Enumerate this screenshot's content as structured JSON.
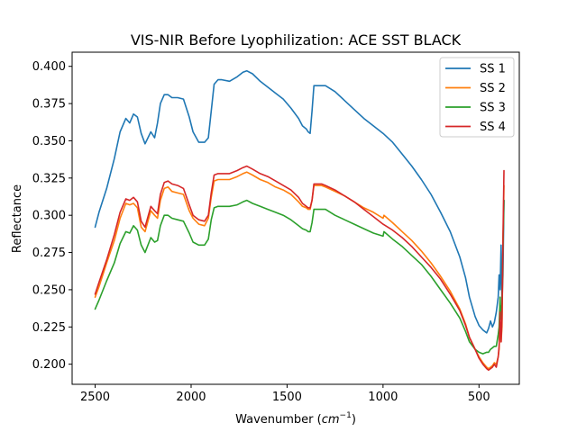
{
  "chart_data": {
    "type": "line",
    "title": "VIS-NIR Before Lyophilization: ACE SST BLACK",
    "xlabel_prefix": "Wavenumber (",
    "xlabel_math": "cm",
    "xlabel_sup": "−1",
    "xlabel_suffix": ")",
    "ylabel": "Reflectance",
    "xlim": [
      2620,
      290
    ],
    "ylim": [
      0.1865,
      0.4095
    ],
    "xticks": [
      2500,
      2000,
      1500,
      1000,
      500
    ],
    "yticks": [
      0.2,
      0.225,
      0.25,
      0.275,
      0.3,
      0.325,
      0.35,
      0.375,
      0.4
    ],
    "xtick_labels": [
      "2500",
      "2000",
      "1500",
      "1000",
      "500"
    ],
    "ytick_labels": [
      "0.200",
      "0.225",
      "0.250",
      "0.275",
      "0.300",
      "0.325",
      "0.350",
      "0.375",
      "0.400"
    ],
    "legend_position": "upper-right",
    "series": [
      {
        "name": "SS 1",
        "color": "#1f77b4",
        "x": [
          2500,
          2480,
          2440,
          2400,
          2370,
          2340,
          2320,
          2300,
          2280,
          2260,
          2240,
          2210,
          2190,
          2175,
          2160,
          2140,
          2120,
          2100,
          2070,
          2040,
          2010,
          1990,
          1960,
          1930,
          1910,
          1895,
          1880,
          1860,
          1840,
          1800,
          1760,
          1730,
          1710,
          1680,
          1640,
          1600,
          1560,
          1520,
          1480,
          1440,
          1420,
          1400,
          1390,
          1380,
          1370,
          1360,
          1320,
          1300,
          1250,
          1200,
          1150,
          1100,
          1050,
          1000,
          950,
          900,
          850,
          800,
          750,
          700,
          650,
          600,
          570,
          550,
          520,
          500,
          480,
          460,
          450,
          440,
          430,
          420,
          410,
          400,
          395,
          390,
          385,
          380,
          375,
          370
        ],
        "values": [
          0.292,
          0.302,
          0.318,
          0.338,
          0.356,
          0.365,
          0.362,
          0.368,
          0.366,
          0.355,
          0.348,
          0.356,
          0.352,
          0.362,
          0.375,
          0.381,
          0.381,
          0.379,
          0.379,
          0.378,
          0.366,
          0.356,
          0.349,
          0.349,
          0.352,
          0.37,
          0.388,
          0.391,
          0.391,
          0.39,
          0.393,
          0.396,
          0.397,
          0.395,
          0.39,
          0.386,
          0.382,
          0.378,
          0.372,
          0.365,
          0.36,
          0.358,
          0.356,
          0.355,
          0.37,
          0.387,
          0.387,
          0.387,
          0.383,
          0.377,
          0.371,
          0.365,
          0.36,
          0.355,
          0.349,
          0.341,
          0.333,
          0.324,
          0.314,
          0.302,
          0.289,
          0.272,
          0.258,
          0.245,
          0.232,
          0.226,
          0.223,
          0.221,
          0.224,
          0.229,
          0.225,
          0.228,
          0.235,
          0.245,
          0.26,
          0.25,
          0.28,
          0.24,
          0.26,
          0.31
        ]
      },
      {
        "name": "SS 2",
        "color": "#ff7f0e",
        "x": [
          2500,
          2480,
          2440,
          2400,
          2370,
          2340,
          2320,
          2300,
          2280,
          2260,
          2240,
          2210,
          2190,
          2175,
          2160,
          2140,
          2120,
          2100,
          2070,
          2040,
          2010,
          1990,
          1960,
          1930,
          1910,
          1895,
          1880,
          1860,
          1840,
          1800,
          1760,
          1730,
          1710,
          1680,
          1640,
          1600,
          1560,
          1520,
          1480,
          1440,
          1420,
          1400,
          1390,
          1380,
          1370,
          1360,
          1320,
          1300,
          1250,
          1200,
          1150,
          1100,
          1050,
          1000,
          995,
          950,
          900,
          850,
          800,
          750,
          700,
          650,
          600,
          570,
          550,
          520,
          500,
          480,
          460,
          450,
          440,
          430,
          420,
          410,
          400,
          395,
          390,
          385,
          380,
          375,
          370
        ],
        "values": [
          0.245,
          0.252,
          0.268,
          0.283,
          0.298,
          0.308,
          0.307,
          0.308,
          0.305,
          0.292,
          0.289,
          0.303,
          0.3,
          0.298,
          0.31,
          0.318,
          0.319,
          0.316,
          0.315,
          0.314,
          0.303,
          0.298,
          0.294,
          0.293,
          0.298,
          0.312,
          0.323,
          0.324,
          0.324,
          0.324,
          0.326,
          0.328,
          0.329,
          0.327,
          0.324,
          0.322,
          0.319,
          0.317,
          0.314,
          0.309,
          0.306,
          0.305,
          0.304,
          0.304,
          0.31,
          0.32,
          0.32,
          0.319,
          0.316,
          0.313,
          0.309,
          0.305,
          0.302,
          0.298,
          0.3,
          0.295,
          0.289,
          0.283,
          0.276,
          0.268,
          0.259,
          0.249,
          0.237,
          0.227,
          0.218,
          0.21,
          0.205,
          0.201,
          0.198,
          0.197,
          0.198,
          0.199,
          0.201,
          0.2,
          0.205,
          0.21,
          0.23,
          0.215,
          0.225,
          0.28,
          0.32
        ]
      },
      {
        "name": "SS 3",
        "color": "#2ca02c",
        "x": [
          2500,
          2480,
          2440,
          2400,
          2370,
          2340,
          2320,
          2300,
          2280,
          2260,
          2240,
          2210,
          2190,
          2175,
          2160,
          2140,
          2120,
          2100,
          2070,
          2040,
          2010,
          1990,
          1960,
          1930,
          1910,
          1895,
          1880,
          1860,
          1840,
          1800,
          1760,
          1730,
          1710,
          1680,
          1640,
          1600,
          1560,
          1520,
          1480,
          1440,
          1420,
          1400,
          1390,
          1380,
          1370,
          1360,
          1320,
          1300,
          1250,
          1200,
          1150,
          1100,
          1050,
          1000,
          995,
          950,
          900,
          850,
          800,
          750,
          700,
          650,
          600,
          570,
          550,
          520,
          500,
          480,
          460,
          450,
          440,
          430,
          420,
          410,
          400,
          395,
          390,
          385,
          380,
          375,
          370
        ],
        "values": [
          0.237,
          0.243,
          0.256,
          0.268,
          0.281,
          0.289,
          0.288,
          0.293,
          0.29,
          0.28,
          0.275,
          0.285,
          0.282,
          0.283,
          0.293,
          0.3,
          0.3,
          0.298,
          0.297,
          0.296,
          0.288,
          0.282,
          0.28,
          0.28,
          0.284,
          0.297,
          0.305,
          0.306,
          0.306,
          0.306,
          0.307,
          0.309,
          0.31,
          0.308,
          0.306,
          0.304,
          0.302,
          0.3,
          0.297,
          0.293,
          0.291,
          0.29,
          0.289,
          0.289,
          0.295,
          0.304,
          0.304,
          0.304,
          0.3,
          0.297,
          0.294,
          0.291,
          0.288,
          0.286,
          0.289,
          0.284,
          0.279,
          0.273,
          0.267,
          0.259,
          0.25,
          0.241,
          0.231,
          0.222,
          0.215,
          0.21,
          0.208,
          0.207,
          0.208,
          0.208,
          0.21,
          0.211,
          0.212,
          0.212,
          0.22,
          0.225,
          0.245,
          0.23,
          0.24,
          0.28,
          0.31
        ]
      },
      {
        "name": "SS 4",
        "color": "#d62728",
        "x": [
          2500,
          2480,
          2440,
          2400,
          2370,
          2340,
          2320,
          2300,
          2280,
          2260,
          2240,
          2210,
          2190,
          2175,
          2160,
          2140,
          2120,
          2100,
          2070,
          2040,
          2010,
          1990,
          1960,
          1930,
          1910,
          1895,
          1880,
          1860,
          1840,
          1800,
          1760,
          1730,
          1710,
          1680,
          1640,
          1600,
          1560,
          1520,
          1480,
          1440,
          1420,
          1400,
          1390,
          1380,
          1370,
          1360,
          1320,
          1300,
          1250,
          1200,
          1150,
          1100,
          1050,
          1000,
          950,
          900,
          850,
          800,
          750,
          700,
          650,
          600,
          570,
          550,
          520,
          500,
          480,
          460,
          450,
          440,
          430,
          420,
          410,
          400,
          395,
          390,
          385,
          380,
          375,
          370
        ],
        "values": [
          0.247,
          0.255,
          0.27,
          0.287,
          0.302,
          0.311,
          0.31,
          0.312,
          0.309,
          0.296,
          0.292,
          0.306,
          0.303,
          0.301,
          0.314,
          0.322,
          0.323,
          0.321,
          0.32,
          0.318,
          0.307,
          0.3,
          0.297,
          0.296,
          0.3,
          0.315,
          0.327,
          0.328,
          0.328,
          0.328,
          0.33,
          0.332,
          0.333,
          0.331,
          0.328,
          0.326,
          0.323,
          0.32,
          0.317,
          0.312,
          0.308,
          0.306,
          0.305,
          0.305,
          0.31,
          0.321,
          0.321,
          0.32,
          0.317,
          0.313,
          0.309,
          0.304,
          0.299,
          0.294,
          0.29,
          0.285,
          0.279,
          0.272,
          0.265,
          0.257,
          0.247,
          0.236,
          0.226,
          0.218,
          0.21,
          0.204,
          0.2,
          0.197,
          0.196,
          0.197,
          0.198,
          0.2,
          0.198,
          0.205,
          0.212,
          0.235,
          0.215,
          0.23,
          0.285,
          0.33
        ]
      }
    ]
  }
}
